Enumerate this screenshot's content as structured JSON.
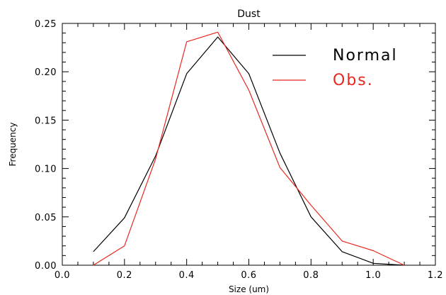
{
  "chart_data": {
    "type": "line",
    "title": "Dust",
    "xlabel": "Size (um)",
    "ylabel": "Frequency",
    "xlim": [
      0.0,
      1.2
    ],
    "ylim": [
      0.0,
      0.25
    ],
    "x_ticks": [
      0.0,
      0.2,
      0.4,
      0.6,
      0.8,
      1.0,
      1.2
    ],
    "x_tick_labels": [
      "0.0",
      "0.2",
      "0.4",
      "0.6",
      "0.8",
      "1.0",
      "1.2"
    ],
    "y_ticks": [
      0.0,
      0.05,
      0.1,
      0.15,
      0.2,
      0.25
    ],
    "y_tick_labels": [
      "0.00",
      "0.05",
      "0.10",
      "0.15",
      "0.20",
      "0.25"
    ],
    "grid": false,
    "legend": "top-right",
    "series": [
      {
        "name": "Normal",
        "color": "#000000",
        "x": [
          0.1,
          0.2,
          0.3,
          0.4,
          0.5,
          0.6,
          0.7,
          0.8,
          0.9,
          1.0,
          1.1
        ],
        "y": [
          0.014,
          0.049,
          0.113,
          0.198,
          0.236,
          0.198,
          0.116,
          0.05,
          0.014,
          0.002,
          0.0
        ]
      },
      {
        "name": "Obs.",
        "color": "#e8281e",
        "x": [
          0.1,
          0.2,
          0.3,
          0.4,
          0.5,
          0.6,
          0.7,
          0.8,
          0.9,
          1.0,
          1.1
        ],
        "y": [
          0.0,
          0.02,
          0.11,
          0.231,
          0.241,
          0.181,
          0.101,
          0.062,
          0.025,
          0.015,
          0.0
        ]
      }
    ]
  }
}
